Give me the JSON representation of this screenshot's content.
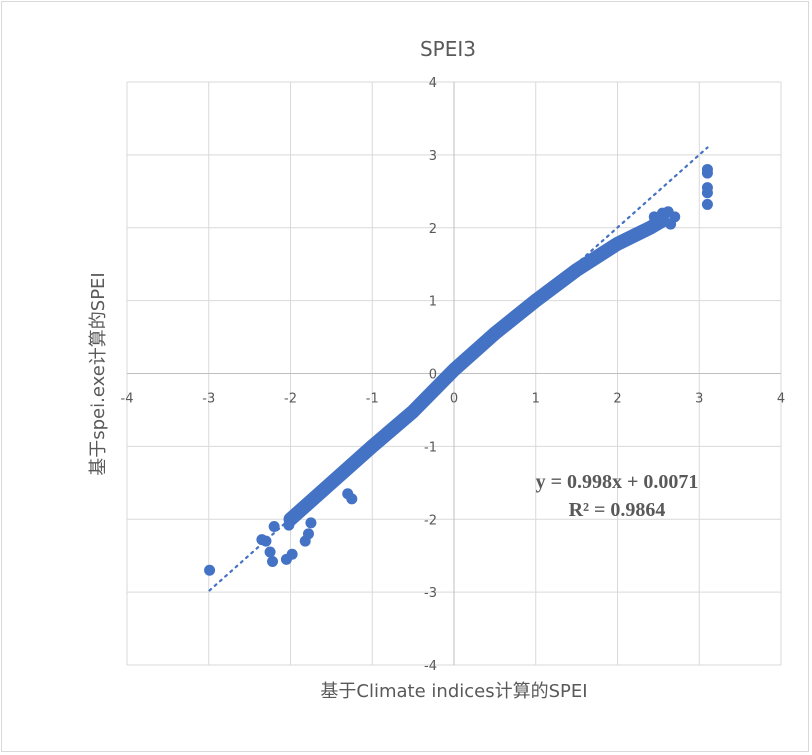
{
  "chart_data": {
    "type": "scatter",
    "title": "SPEI3",
    "xlabel": "基于Climate indices计算的SPEI",
    "ylabel": "基于spei.exe计算的SPEI",
    "xlim": [
      -4,
      4
    ],
    "ylim": [
      -4,
      4
    ],
    "x_ticks": [
      -4,
      -3,
      -2,
      -1,
      0,
      1,
      2,
      3,
      4
    ],
    "y_ticks": [
      -4,
      -3,
      -2,
      -1,
      0,
      1,
      2,
      3,
      4
    ],
    "grid": true,
    "legend": "none",
    "marker_color": "#4472C4",
    "series": [
      {
        "name": "SPEI3",
        "dense_band": [
          [
            -2.0,
            -2.0
          ],
          [
            -1.5,
            -1.5
          ],
          [
            -1.0,
            -1.0
          ],
          [
            -0.5,
            -0.52
          ],
          [
            0.0,
            0.05
          ],
          [
            0.5,
            0.55
          ],
          [
            1.0,
            1.0
          ],
          [
            1.5,
            1.42
          ],
          [
            2.0,
            1.78
          ],
          [
            2.4,
            2.0
          ],
          [
            2.55,
            2.1
          ]
        ],
        "outliers": [
          [
            -2.99,
            -2.7
          ],
          [
            -2.3,
            -2.3
          ],
          [
            -2.35,
            -2.28
          ],
          [
            -2.2,
            -2.1
          ],
          [
            -2.25,
            -2.45
          ],
          [
            -2.22,
            -2.58
          ],
          [
            -2.05,
            -2.55
          ],
          [
            -1.98,
            -2.48
          ],
          [
            -1.82,
            -2.3
          ],
          [
            -1.78,
            -2.2
          ],
          [
            -1.75,
            -2.05
          ],
          [
            -2.02,
            -2.08
          ],
          [
            -1.3,
            -1.65
          ],
          [
            -1.25,
            -1.72
          ],
          [
            -1.0,
            -0.98
          ],
          [
            2.55,
            2.2
          ],
          [
            2.62,
            2.22
          ],
          [
            2.7,
            2.15
          ],
          [
            2.65,
            2.05
          ],
          [
            2.45,
            2.15
          ],
          [
            3.1,
            2.8
          ],
          [
            3.1,
            2.75
          ],
          [
            3.1,
            2.55
          ],
          [
            3.1,
            2.48
          ],
          [
            3.1,
            2.32
          ]
        ]
      }
    ],
    "trendline": {
      "type": "linear",
      "slope": 0.998,
      "intercept": 0.0071,
      "x_range": [
        -2.99,
        3.1
      ],
      "style": "dotted",
      "equation_label": "y = 0.998x + 0.0071",
      "r2_label": "R² = 0.9864"
    }
  }
}
